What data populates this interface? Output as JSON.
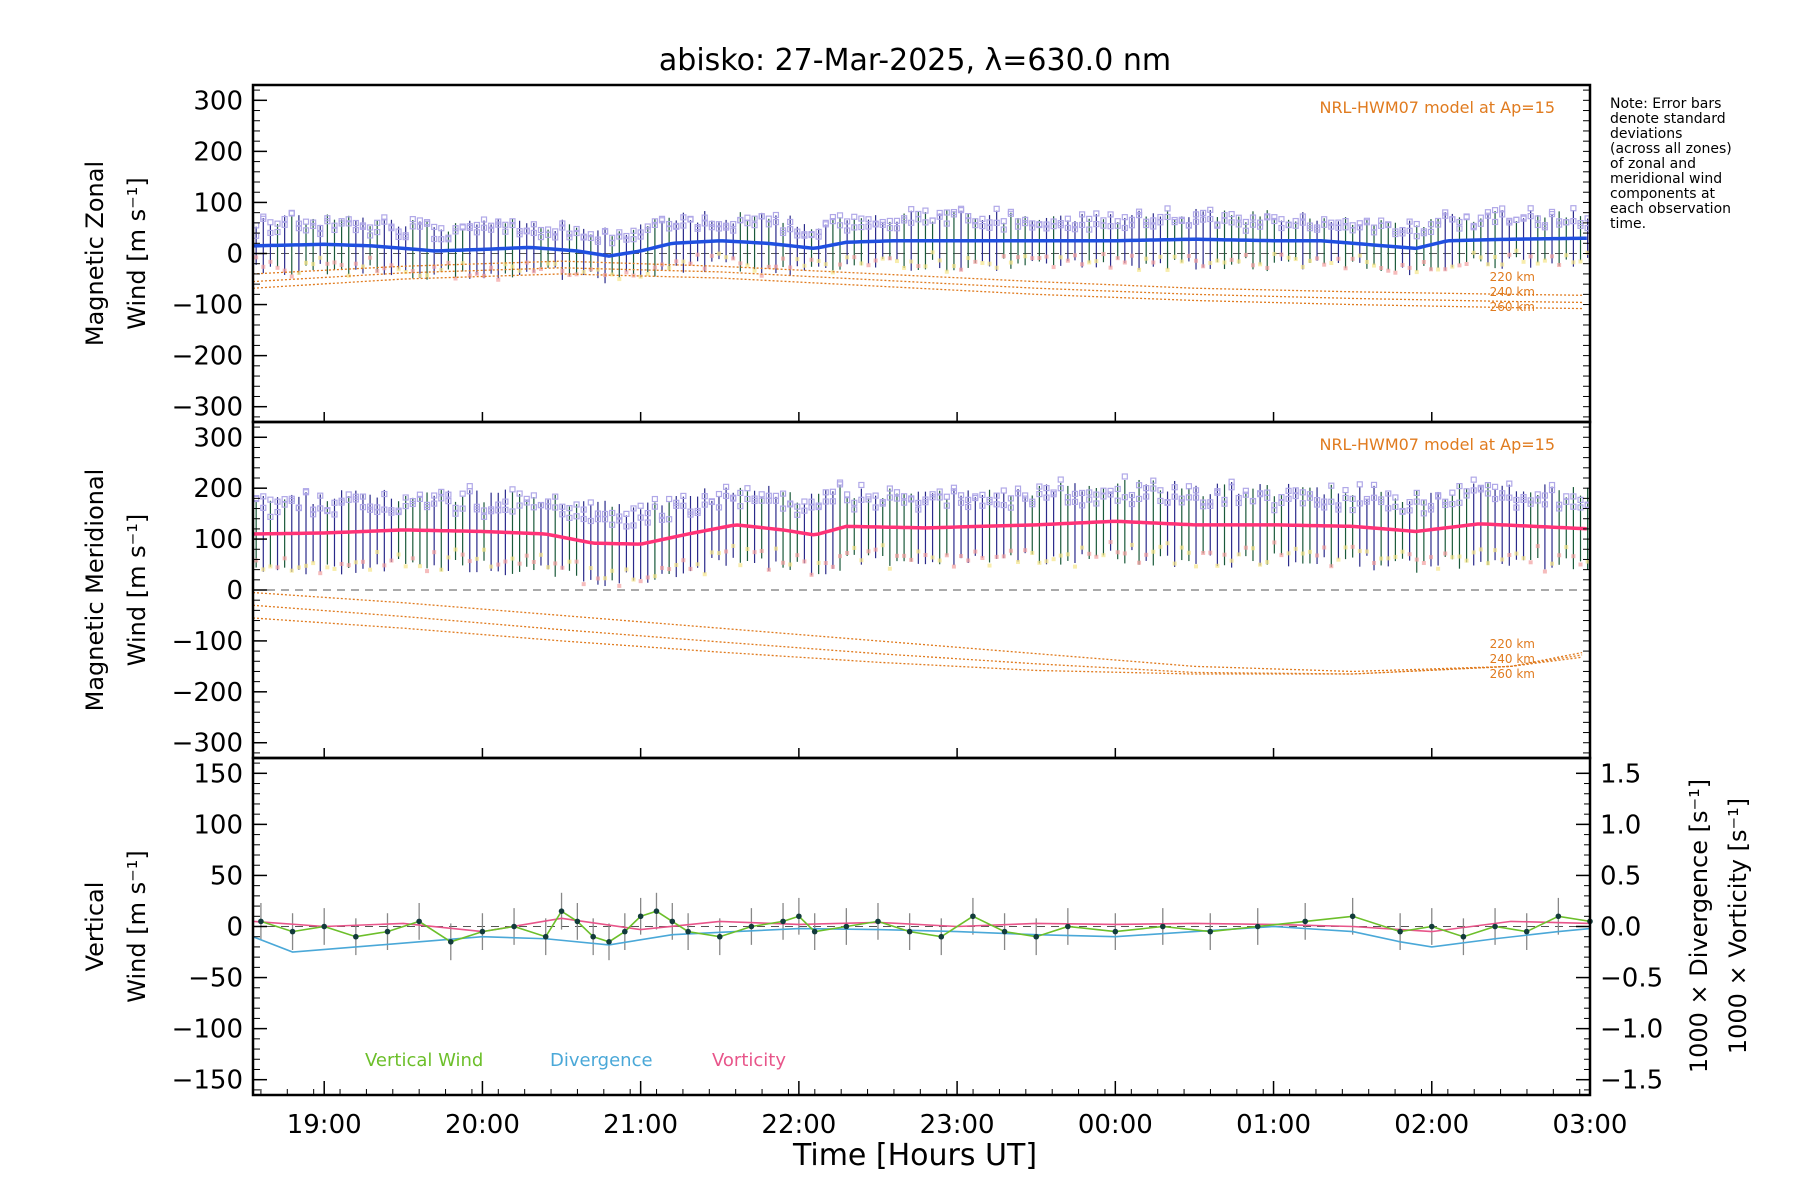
{
  "chart_data": {
    "type": "line",
    "title": "abisko: 27-Mar-2025, λ=630.0 nm",
    "xlabel": "Time [Hours UT]",
    "x_ticks": [
      "19:00",
      "20:00",
      "21:00",
      "22:00",
      "23:00",
      "00:00",
      "01:00",
      "02:00",
      "03:00"
    ],
    "x_range_hours": [
      18.55,
      27.0
    ],
    "note": [
      "Note: Error bars",
      "denote standard",
      "deviations",
      "(across all zones)",
      "of zonal and",
      "meridional wind",
      "components at",
      "each observation",
      "time."
    ],
    "colors": {
      "zonal_mean": "#1f4fe0",
      "meridional_mean": "#ff3377",
      "scatter": "#b0a8e8",
      "model": "#e07b1f",
      "vertical": "#6cbf2a",
      "divergence": "#4aa8d8",
      "vorticity": "#e8558a",
      "errbar": "#888888"
    },
    "panels": [
      {
        "name": "zonal",
        "ylabel_line1": "Magnetic Zonal",
        "ylabel_line2": "Wind [m s⁻¹]",
        "ylim": [
          -330,
          330
        ],
        "yticks": [
          300,
          200,
          100,
          0,
          -100,
          -200,
          -300
        ],
        "model_label": "NRL-HWM07 model at Ap=15",
        "model_altitudes": [
          "220 km",
          "240 km",
          "260 km"
        ],
        "mean_wind": {
          "x": [
            18.55,
            19.0,
            19.3,
            19.7,
            20.0,
            20.3,
            20.6,
            20.8,
            21.0,
            21.2,
            21.5,
            21.8,
            22.1,
            22.3,
            22.6,
            23.0,
            23.5,
            24.0,
            24.5,
            25.0,
            25.3,
            25.7,
            25.9,
            26.1,
            26.5,
            27.0
          ],
          "y": [
            15,
            18,
            15,
            5,
            8,
            12,
            5,
            -5,
            5,
            20,
            25,
            20,
            10,
            22,
            25,
            25,
            25,
            25,
            28,
            25,
            25,
            15,
            10,
            25,
            28,
            30
          ]
        },
        "models": [
          {
            "name": "220 km",
            "x": [
              18.55,
              19.5,
              20.5,
              21.5,
              22.5,
              23.5,
              24.5,
              25.5,
              26.5,
              27.0
            ],
            "y": [
              -40,
              -25,
              -15,
              -25,
              -40,
              -55,
              -68,
              -75,
              -80,
              -82
            ]
          },
          {
            "name": "240 km",
            "x": [
              18.55,
              19.5,
              20.5,
              21.5,
              22.5,
              23.5,
              24.5,
              25.5,
              26.5,
              27.0
            ],
            "y": [
              -55,
              -38,
              -28,
              -36,
              -52,
              -68,
              -80,
              -88,
              -94,
              -96
            ]
          },
          {
            "name": "260 km",
            "x": [
              18.55,
              19.5,
              20.5,
              21.5,
              22.5,
              23.5,
              24.5,
              25.5,
              26.5,
              27.0
            ],
            "y": [
              -68,
              -50,
              -40,
              -48,
              -64,
              -80,
              -92,
              -100,
              -106,
              -108
            ]
          }
        ]
      },
      {
        "name": "meridional",
        "ylabel_line1": "Magnetic Meridional",
        "ylabel_line2": "Wind [m s⁻¹]",
        "ylim": [
          -330,
          330
        ],
        "yticks": [
          300,
          200,
          100,
          0,
          -100,
          -200,
          -300
        ],
        "model_label": "NRL-HWM07 model at Ap=15",
        "model_altitudes": [
          "220 km",
          "240 km",
          "260 km"
        ],
        "mean_wind": {
          "x": [
            18.55,
            19.0,
            19.5,
            20.0,
            20.4,
            20.7,
            21.0,
            21.3,
            21.6,
            21.9,
            22.1,
            22.3,
            22.8,
            23.5,
            24.0,
            24.5,
            25.0,
            25.5,
            25.9,
            26.3,
            27.0
          ],
          "y": [
            110,
            112,
            118,
            115,
            110,
            92,
            90,
            110,
            128,
            118,
            108,
            125,
            122,
            128,
            135,
            128,
            128,
            125,
            115,
            130,
            120
          ]
        },
        "models": [
          {
            "name": "220 km",
            "x": [
              18.55,
              19.5,
              20.5,
              21.5,
              22.5,
              23.5,
              24.5,
              25.5,
              26.5,
              27.0
            ],
            "y": [
              -5,
              -25,
              -50,
              -75,
              -100,
              -125,
              -150,
              -160,
              -150,
              -120
            ]
          },
          {
            "name": "240 km",
            "x": [
              18.55,
              19.5,
              20.5,
              21.5,
              22.5,
              23.5,
              24.5,
              25.5,
              26.5,
              27.0
            ],
            "y": [
              -30,
              -52,
              -78,
              -102,
              -125,
              -145,
              -162,
              -165,
              -150,
              -125
            ]
          },
          {
            "name": "260 km",
            "x": [
              18.55,
              19.5,
              20.5,
              21.5,
              22.5,
              23.5,
              24.5,
              25.5,
              26.5,
              27.0
            ],
            "y": [
              -55,
              -75,
              -100,
              -122,
              -142,
              -158,
              -165,
              -165,
              -150,
              -130
            ]
          }
        ]
      },
      {
        "name": "vertical",
        "ylabel_line1": "Vertical",
        "ylabel_line2": "Wind [m s⁻¹]",
        "ylim": [
          -165,
          165
        ],
        "yticks": [
          150,
          100,
          50,
          0,
          -50,
          -100,
          -150
        ],
        "right_ylim": [
          -1.65,
          1.65
        ],
        "right_yticks": [
          "1.5",
          "1.0",
          "0.5",
          "0.0",
          "−0.5",
          "−1.0",
          "−1.5"
        ],
        "right_ylabel_divergence": "1000 × Divergence [s⁻¹]",
        "right_ylabel_vorticity": "1000 × Vorticity [s⁻¹]",
        "legend": [
          "Vertical Wind",
          "Divergence",
          "Vorticity"
        ],
        "vertical_wind": {
          "x": [
            18.6,
            18.8,
            19.0,
            19.2,
            19.4,
            19.6,
            19.8,
            20.0,
            20.2,
            20.4,
            20.5,
            20.6,
            20.7,
            20.8,
            20.9,
            21.0,
            21.1,
            21.2,
            21.3,
            21.5,
            21.7,
            21.9,
            22.0,
            22.1,
            22.3,
            22.5,
            22.7,
            22.9,
            23.1,
            23.3,
            23.5,
            23.7,
            24.0,
            24.3,
            24.6,
            24.9,
            25.2,
            25.5,
            25.8,
            26.0,
            26.2,
            26.4,
            26.6,
            26.8,
            27.0
          ],
          "y": [
            5,
            -5,
            0,
            -10,
            -5,
            5,
            -15,
            -5,
            0,
            -10,
            15,
            5,
            -10,
            -15,
            -5,
            10,
            15,
            5,
            -5,
            -10,
            0,
            5,
            10,
            -5,
            0,
            5,
            -5,
            -10,
            10,
            -5,
            -10,
            0,
            -5,
            0,
            -5,
            0,
            5,
            10,
            -5,
            0,
            -10,
            0,
            -5,
            10,
            5
          ]
        },
        "divergence": {
          "x": [
            18.55,
            18.8,
            19.2,
            19.6,
            20.0,
            20.4,
            20.8,
            21.2,
            21.6,
            22.0,
            22.5,
            23.0,
            23.5,
            24.0,
            24.5,
            25.0,
            25.5,
            25.8,
            26.0,
            26.4,
            26.8,
            27.0
          ],
          "y": [
            -0.1,
            -0.25,
            -0.2,
            -0.15,
            -0.1,
            -0.12,
            -0.18,
            -0.08,
            -0.05,
            -0.02,
            -0.03,
            -0.05,
            -0.08,
            -0.1,
            -0.05,
            0.0,
            -0.05,
            -0.15,
            -0.2,
            -0.12,
            -0.05,
            -0.02
          ]
        },
        "vorticity": {
          "x": [
            18.55,
            19.0,
            19.5,
            20.0,
            20.5,
            21.0,
            21.5,
            22.0,
            22.5,
            23.0,
            23.5,
            24.0,
            24.5,
            25.0,
            25.5,
            26.0,
            26.5,
            27.0
          ],
          "y": [
            0.05,
            0.0,
            0.03,
            -0.05,
            0.08,
            -0.03,
            0.05,
            0.02,
            0.04,
            0.0,
            0.03,
            0.02,
            0.03,
            0.02,
            0.0,
            -0.05,
            0.05,
            0.03
          ]
        }
      }
    ]
  }
}
